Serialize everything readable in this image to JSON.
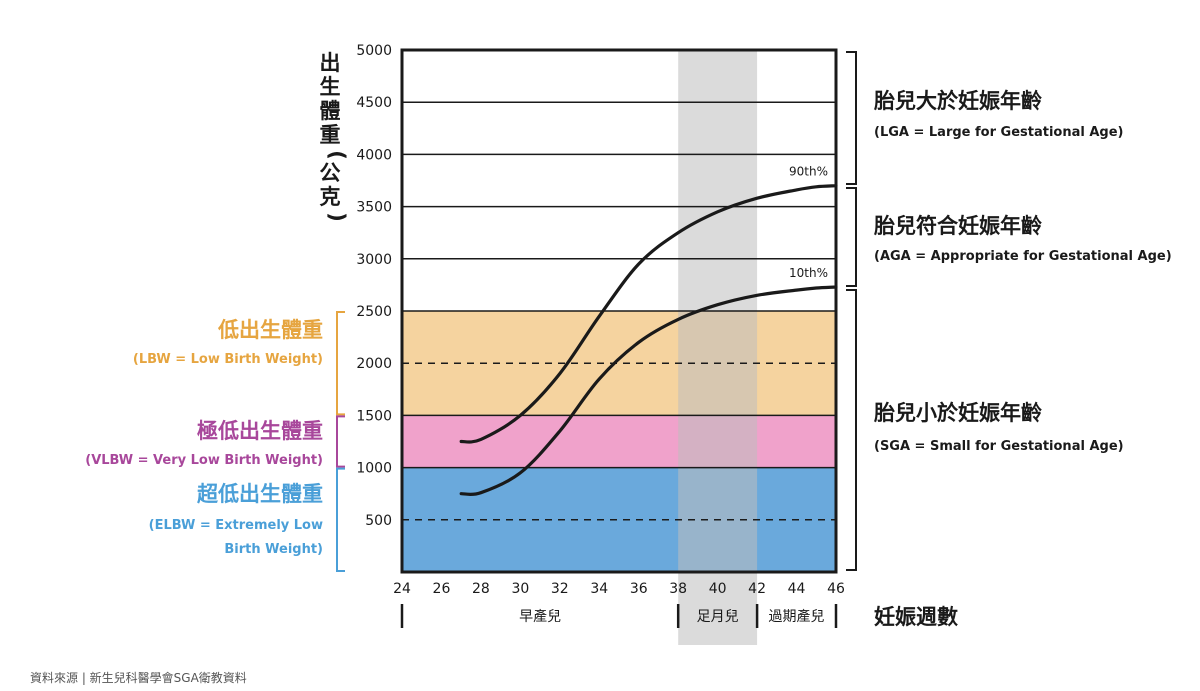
{
  "chart_data": {
    "type": "line",
    "y_axis_label": "出生體重(公克)",
    "x_axis_label": "妊娠週數",
    "x_ticks": [
      24,
      26,
      28,
      30,
      32,
      34,
      36,
      38,
      40,
      42,
      44,
      46
    ],
    "xlim": [
      24,
      46
    ],
    "y_ticks": [
      500,
      1000,
      1500,
      2000,
      2500,
      3000,
      3500,
      4000,
      4500,
      5000
    ],
    "ylim": [
      0,
      5000
    ],
    "grid": "horizontal",
    "series": [
      {
        "name": "90th%",
        "x": [
          27,
          28,
          30,
          32,
          34,
          36,
          38,
          40,
          42,
          44,
          45,
          46
        ],
        "y": [
          1250,
          1270,
          1500,
          1900,
          2450,
          2950,
          3250,
          3450,
          3580,
          3660,
          3690,
          3700
        ]
      },
      {
        "name": "10th%",
        "x": [
          27,
          28,
          30,
          32,
          34,
          36,
          38,
          40,
          42,
          44,
          45,
          46
        ],
        "y": [
          750,
          760,
          950,
          1350,
          1850,
          2200,
          2420,
          2560,
          2650,
          2700,
          2720,
          2730
        ]
      }
    ],
    "bands": [
      {
        "name": "低出生體重",
        "sub": "(LBW = Low Birth Weight)",
        "from": 1500,
        "to": 2500,
        "color": "#f5d39f",
        "label_color": "#e6a540"
      },
      {
        "name": "極低出生體重",
        "sub": "(VLBW = Very Low Birth Weight)",
        "from": 1000,
        "to": 1500,
        "color": "#f0a2cb",
        "label_color": "#a8479b"
      },
      {
        "name": "超低出生體重",
        "sub_lines": [
          "(ELBW = Extremely Low",
          "Birth Weight)"
        ],
        "from": 0,
        "to": 1000,
        "color": "#6aa9dc",
        "label_color": "#4a9fd8"
      }
    ],
    "dashed_lines": [
      2000,
      500
    ],
    "term_shading": {
      "from": 38,
      "to": 42,
      "color": "#bdbdbd"
    },
    "size_categories": [
      {
        "title": "胎兒大於妊娠年齡",
        "sub": "(LGA = Large for Gestational Age)"
      },
      {
        "title": "胎兒符合妊娠年齡",
        "sub": "(AGA = Appropriate for Gestational Age)"
      },
      {
        "title": "胎兒小於妊娠年齡",
        "sub": "(SGA = Small for Gestational Age)"
      }
    ],
    "periods": [
      {
        "label": "早產兒",
        "from": 24,
        "to": 38
      },
      {
        "label": "足月兒",
        "from": 38,
        "to": 42
      },
      {
        "label": "過期產兒",
        "from": 42,
        "to": 46
      }
    ],
    "source": "資料來源 | 新生兒科醫學會SGA衛教資料"
  }
}
